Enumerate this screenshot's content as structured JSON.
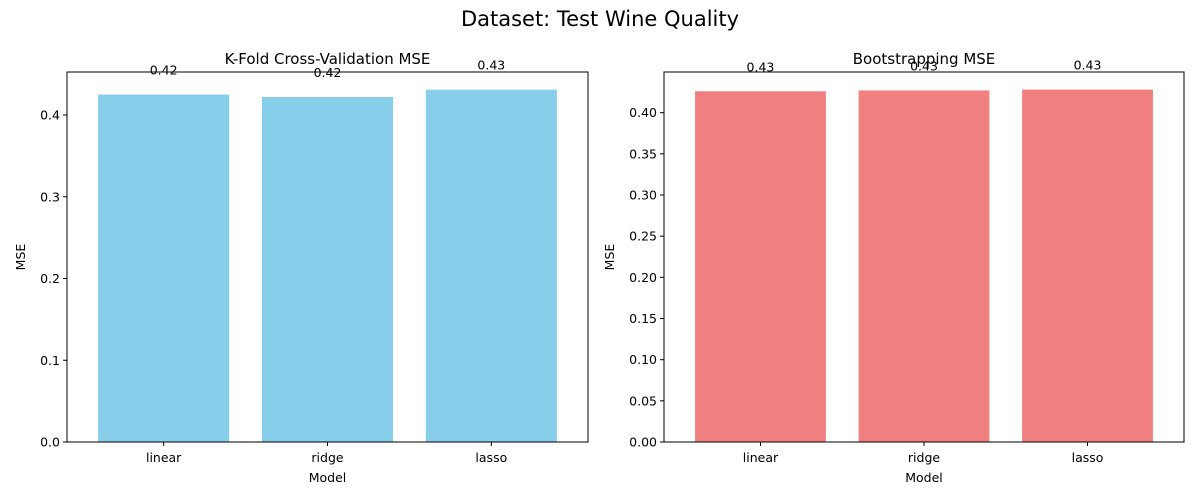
{
  "suptitle": "Dataset: Test Wine Quality",
  "chart_data": [
    {
      "type": "bar",
      "title": "K-Fold Cross-Validation MSE",
      "xlabel": "Model",
      "ylabel": "MSE",
      "categories": [
        "linear",
        "ridge",
        "lasso"
      ],
      "values": [
        0.425,
        0.422,
        0.431
      ],
      "data_labels": [
        "0.42",
        "0.42",
        "0.43"
      ],
      "color": "#87ceeb",
      "ylim": [
        0,
        0.4526
      ],
      "yticks": [
        0.0,
        0.1,
        0.2,
        0.3,
        0.4
      ],
      "ytick_labels": [
        "0.0",
        "0.1",
        "0.2",
        "0.3",
        "0.4"
      ],
      "grid": false
    },
    {
      "type": "bar",
      "title": "Bootstrapping MSE",
      "xlabel": "Model",
      "ylabel": "MSE",
      "categories": [
        "linear",
        "ridge",
        "lasso"
      ],
      "values": [
        0.426,
        0.427,
        0.428
      ],
      "data_labels": [
        "0.43",
        "0.43",
        "0.43"
      ],
      "color": "#f08080",
      "ylim": [
        0,
        0.4494
      ],
      "yticks": [
        0.0,
        0.05,
        0.1,
        0.15,
        0.2,
        0.25,
        0.3,
        0.35,
        0.4
      ],
      "ytick_labels": [
        "0.00",
        "0.05",
        "0.10",
        "0.15",
        "0.20",
        "0.25",
        "0.30",
        "0.35",
        "0.40"
      ],
      "grid": false
    }
  ]
}
